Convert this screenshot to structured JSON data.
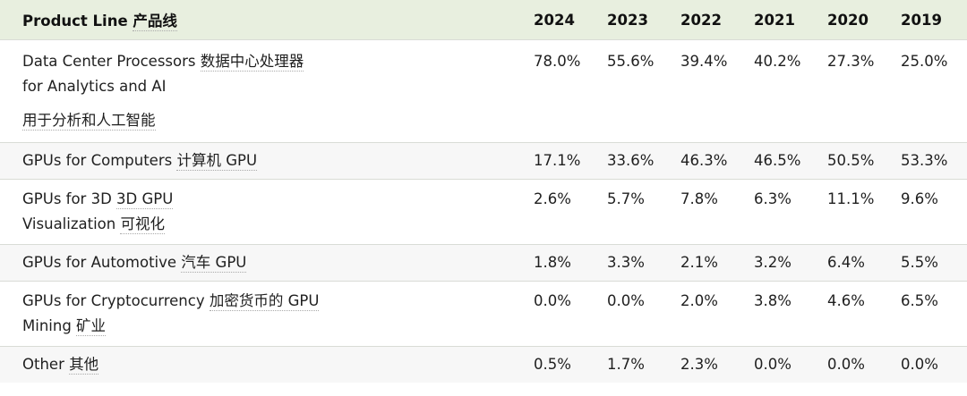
{
  "header": {
    "label": "Product Line",
    "label_zh": "产品线",
    "years": [
      "2024",
      "2023",
      "2022",
      "2021",
      "2020",
      "2019"
    ]
  },
  "rows": [
    {
      "name_lines": [
        "Data Center Processors",
        "for Analytics and AI"
      ],
      "zh": "数据中心处理器",
      "zh2": "用于分析和人工智能",
      "values": [
        "78.0%",
        "55.6%",
        "39.4%",
        "40.2%",
        "27.3%",
        "25.0%"
      ]
    },
    {
      "name": "GPUs for Computers",
      "zh": "计算机 GPU",
      "values": [
        "17.1%",
        "33.6%",
        "46.3%",
        "46.5%",
        "50.5%",
        "53.3%"
      ]
    },
    {
      "name_lines": [
        "GPUs for 3D",
        "Visualization"
      ],
      "zh": "3D GPU",
      "zh2": "可视化",
      "values": [
        "2.6%",
        "5.7%",
        "7.8%",
        "6.3%",
        "11.1%",
        "9.6%"
      ]
    },
    {
      "name": "GPUs for Automotive",
      "zh": "汽车 GPU",
      "values": [
        "1.8%",
        "3.3%",
        "2.1%",
        "3.2%",
        "6.4%",
        "5.5%"
      ]
    },
    {
      "name_lines": [
        "GPUs for Cryptocurrency",
        "Mining"
      ],
      "zh": "加密货币的 GPU",
      "zh2": "矿业",
      "values": [
        "0.0%",
        "0.0%",
        "2.0%",
        "3.8%",
        "4.6%",
        "6.5%"
      ]
    },
    {
      "name": "Other",
      "zh": "其他",
      "values": [
        "0.5%",
        "1.7%",
        "2.3%",
        "0.0%",
        "0.0%",
        "0.0%"
      ]
    }
  ]
}
